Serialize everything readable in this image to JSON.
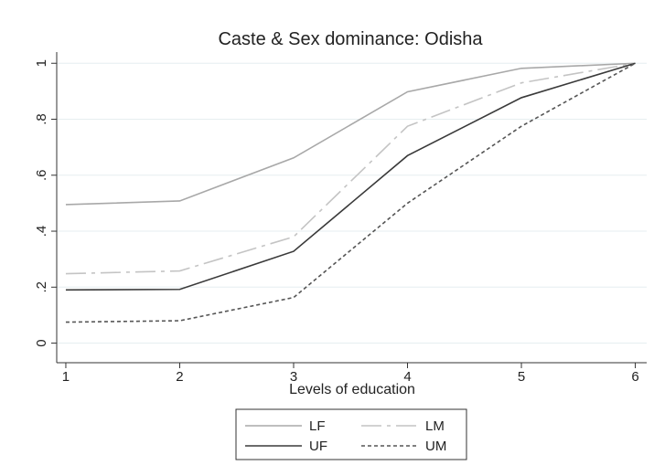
{
  "chart_data": {
    "type": "line",
    "title": "Caste & Sex dominance: Odisha",
    "x_label": "Levels of education",
    "x": [
      1,
      2,
      3,
      4,
      5,
      6
    ],
    "xlim": [
      0.92,
      6.1
    ],
    "xticks": [
      1,
      2,
      3,
      4,
      5,
      6
    ],
    "ylim": [
      -0.07,
      1.04
    ],
    "yticks": [
      0,
      {
        "value": 0.2,
        "label": ".2"
      },
      {
        "value": 0.4,
        "label": ".4"
      },
      {
        "value": 0.6,
        "label": ".6"
      },
      {
        "value": 0.8,
        "label": ".8"
      },
      1
    ],
    "grid": true,
    "series": [
      {
        "name": "LF",
        "color": "#a8a8a8",
        "style": "solid",
        "values": [
          0.495,
          0.508,
          0.662,
          0.898,
          0.982,
          1
        ]
      },
      {
        "name": "LM",
        "color": "#c4c4c4",
        "style": "longdash",
        "values": [
          0.248,
          0.258,
          0.38,
          0.775,
          0.93,
          1
        ]
      },
      {
        "name": "UF",
        "color": "#3a3a3a",
        "style": "solid",
        "values": [
          0.19,
          0.192,
          0.328,
          0.67,
          0.877,
          1
        ]
      },
      {
        "name": "UM",
        "color": "#555555",
        "style": "shortdash",
        "values": [
          0.075,
          0.08,
          0.163,
          0.5,
          0.775,
          1
        ]
      }
    ]
  }
}
